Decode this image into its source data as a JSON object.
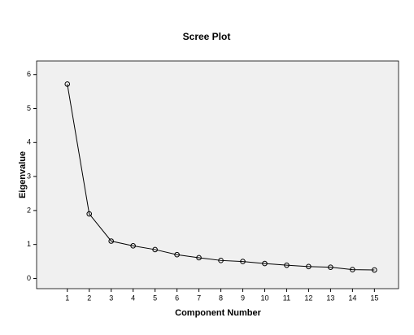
{
  "chart_data": {
    "type": "line",
    "title": "Scree Plot",
    "x_label": "Component Number",
    "y_label": "Eigenvalue",
    "x": [
      1,
      2,
      3,
      4,
      5,
      6,
      7,
      8,
      9,
      10,
      11,
      12,
      13,
      14,
      15
    ],
    "values": [
      5.72,
      1.9,
      1.1,
      0.96,
      0.85,
      0.7,
      0.61,
      0.53,
      0.5,
      0.44,
      0.39,
      0.35,
      0.33,
      0.26,
      0.25
    ],
    "color": "#000000",
    "background": "#f0f0f0",
    "xlim": [
      -0.4,
      16.1
    ],
    "xticks": [
      1,
      2,
      3,
      4,
      5,
      6,
      7,
      8,
      9,
      10,
      11,
      12,
      13,
      14,
      15
    ],
    "ylim": [
      -0.3,
      6.4
    ],
    "yticks": [
      0,
      1,
      2,
      3,
      4,
      5,
      6
    ]
  }
}
